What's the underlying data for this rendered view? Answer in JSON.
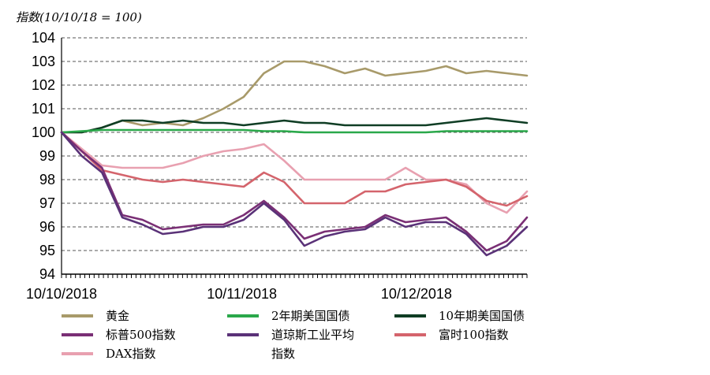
{
  "chart_data": {
    "type": "line",
    "title": "指数(10/10/18 = 100)",
    "xlabel": "",
    "ylabel": "",
    "ylim": [
      94,
      104
    ],
    "yticks": [
      94,
      95,
      96,
      97,
      98,
      99,
      100,
      101,
      102,
      103,
      104
    ],
    "xticks": [
      "10/10/2018",
      "10/11/2018",
      "10/12/2018"
    ],
    "grid": "horizontal dashed",
    "legend_position": "bottom",
    "x": [
      "10/10",
      "10/13",
      "10/17",
      "10/20",
      "10/24",
      "10/27",
      "10/31",
      "11/03",
      "11/07",
      "11/10",
      "11/14",
      "11/17",
      "11/21",
      "11/24",
      "11/28",
      "12/01",
      "12/05",
      "12/08",
      "12/12",
      "12/15",
      "12/19",
      "12/22",
      "12/26",
      "12/29"
    ],
    "series": [
      {
        "name": "黄金",
        "color": "#a89a6a",
        "values": [
          100.0,
          100.0,
          100.2,
          100.5,
          100.3,
          100.4,
          100.3,
          100.6,
          101.0,
          101.5,
          102.5,
          103.0,
          103.0,
          102.8,
          102.5,
          102.7,
          102.4,
          102.5,
          102.6,
          102.8,
          102.5,
          102.6,
          102.5,
          102.4
        ]
      },
      {
        "name": "2年期美国国债",
        "color": "#2aa84a",
        "values": [
          100.0,
          100.05,
          100.1,
          100.1,
          100.1,
          100.1,
          100.1,
          100.1,
          100.1,
          100.1,
          100.05,
          100.05,
          100.0,
          100.0,
          100.0,
          100.0,
          100.0,
          100.0,
          100.0,
          100.05,
          100.05,
          100.05,
          100.05,
          100.05
        ]
      },
      {
        "name": "10年期美国国债",
        "color": "#0f3d24",
        "values": [
          100.0,
          100.0,
          100.2,
          100.5,
          100.5,
          100.4,
          100.5,
          100.4,
          100.4,
          100.3,
          100.4,
          100.5,
          100.4,
          100.4,
          100.3,
          100.3,
          100.3,
          100.3,
          100.3,
          100.4,
          100.5,
          100.6,
          100.5,
          100.4
        ]
      },
      {
        "name": "标普500指数",
        "color": "#7a2f75",
        "values": [
          100.0,
          99.2,
          98.5,
          96.5,
          96.3,
          95.9,
          96.0,
          96.1,
          96.1,
          96.5,
          97.1,
          96.4,
          95.5,
          95.8,
          95.9,
          96.0,
          96.5,
          96.2,
          96.3,
          96.4,
          95.8,
          95.0,
          95.4,
          96.4
        ]
      },
      {
        "name": "道琼斯工业平均指数",
        "color": "#5a3278",
        "values": [
          100.0,
          99.0,
          98.3,
          96.4,
          96.1,
          95.7,
          95.8,
          96.0,
          96.0,
          96.3,
          97.0,
          96.3,
          95.2,
          95.6,
          95.8,
          95.9,
          96.4,
          96.0,
          96.2,
          96.2,
          95.7,
          94.8,
          95.2,
          96.0
        ]
      },
      {
        "name": "富时100指数",
        "color": "#d4646c",
        "values": [
          100.0,
          99.2,
          98.4,
          98.2,
          98.0,
          97.9,
          98.0,
          97.9,
          97.8,
          97.7,
          98.3,
          97.9,
          97.0,
          97.0,
          97.0,
          97.5,
          97.5,
          97.8,
          97.9,
          98.0,
          97.7,
          97.1,
          96.9,
          97.3
        ]
      },
      {
        "name": "DAX指数",
        "color": "#e8a0b0",
        "values": [
          100.0,
          99.3,
          98.6,
          98.5,
          98.5,
          98.5,
          98.7,
          99.0,
          99.2,
          99.3,
          99.5,
          98.8,
          98.0,
          98.0,
          98.0,
          98.0,
          98.0,
          98.5,
          98.0,
          98.0,
          97.8,
          97.0,
          96.6,
          97.5
        ]
      }
    ]
  }
}
